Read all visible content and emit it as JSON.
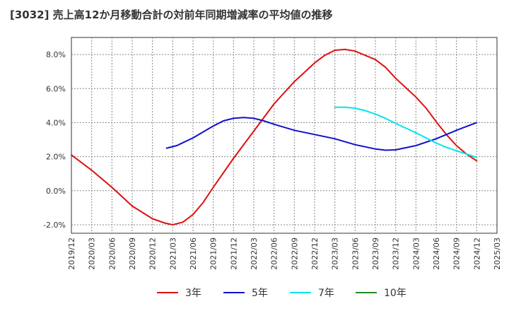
{
  "chart_data": {
    "type": "line",
    "title": "[3032]  売上高12か月移動合計の対前年同期増減率の平均値の推移",
    "ylim": [
      -2.5,
      9.0
    ],
    "yticks": [
      -2.0,
      0.0,
      2.0,
      4.0,
      6.0,
      8.0
    ],
    "ytick_labels": [
      "-2.0%",
      "0.0%",
      "2.0%",
      "4.0%",
      "6.0%",
      "8.0%"
    ],
    "x_categories": [
      "2019/12",
      "2020/03",
      "2020/06",
      "2020/09",
      "2020/12",
      "2021/03",
      "2021/06",
      "2021/09",
      "2021/12",
      "2022/03",
      "2022/06",
      "2022/09",
      "2022/12",
      "2023/03",
      "2023/06",
      "2023/09",
      "2023/12",
      "2024/03",
      "2024/06",
      "2024/09",
      "2024/12",
      "2025/03"
    ],
    "grid": true,
    "legend_position": "bottom",
    "series": [
      {
        "name": "3年",
        "color": "#dd1111",
        "points": [
          [
            0,
            2.1
          ],
          [
            1,
            1.2
          ],
          [
            2,
            0.2
          ],
          [
            3,
            -0.9
          ],
          [
            4,
            -1.65
          ],
          [
            4.6,
            -1.9
          ],
          [
            5,
            -2.0
          ],
          [
            5.5,
            -1.85
          ],
          [
            6,
            -1.4
          ],
          [
            6.5,
            -0.7
          ],
          [
            7,
            0.2
          ],
          [
            8,
            1.9
          ],
          [
            9,
            3.5
          ],
          [
            10,
            5.1
          ],
          [
            11,
            6.4
          ],
          [
            12,
            7.5
          ],
          [
            12.5,
            7.95
          ],
          [
            13,
            8.25
          ],
          [
            13.5,
            8.3
          ],
          [
            14,
            8.2
          ],
          [
            15,
            7.7
          ],
          [
            15.5,
            7.25
          ],
          [
            16,
            6.6
          ],
          [
            17,
            5.5
          ],
          [
            17.5,
            4.85
          ],
          [
            18,
            4.05
          ],
          [
            18.5,
            3.3
          ],
          [
            19,
            2.65
          ],
          [
            19.5,
            2.15
          ],
          [
            20,
            1.75
          ]
        ]
      },
      {
        "name": "5年",
        "color": "#1111cc",
        "points": [
          [
            4.7,
            2.5
          ],
          [
            5.2,
            2.65
          ],
          [
            6,
            3.1
          ],
          [
            7,
            3.8
          ],
          [
            7.5,
            4.1
          ],
          [
            8,
            4.25
          ],
          [
            8.5,
            4.3
          ],
          [
            9,
            4.25
          ],
          [
            9.5,
            4.1
          ],
          [
            10,
            3.9
          ],
          [
            11,
            3.55
          ],
          [
            12,
            3.3
          ],
          [
            13,
            3.05
          ],
          [
            14,
            2.7
          ],
          [
            15,
            2.45
          ],
          [
            15.5,
            2.38
          ],
          [
            16,
            2.4
          ],
          [
            17,
            2.65
          ],
          [
            18,
            3.05
          ],
          [
            19,
            3.55
          ],
          [
            20,
            4.0
          ]
        ]
      },
      {
        "name": "7年",
        "color": "#00e5ee",
        "points": [
          [
            13,
            4.9
          ],
          [
            13.5,
            4.9
          ],
          [
            14,
            4.85
          ],
          [
            14.5,
            4.7
          ],
          [
            15,
            4.5
          ],
          [
            15.5,
            4.25
          ],
          [
            16,
            3.95
          ],
          [
            17,
            3.4
          ],
          [
            17.5,
            3.1
          ],
          [
            18,
            2.8
          ],
          [
            18.5,
            2.55
          ],
          [
            19,
            2.35
          ],
          [
            19.5,
            2.15
          ],
          [
            20,
            1.95
          ]
        ]
      },
      {
        "name": "10年",
        "color": "#228b22",
        "points": []
      }
    ]
  }
}
